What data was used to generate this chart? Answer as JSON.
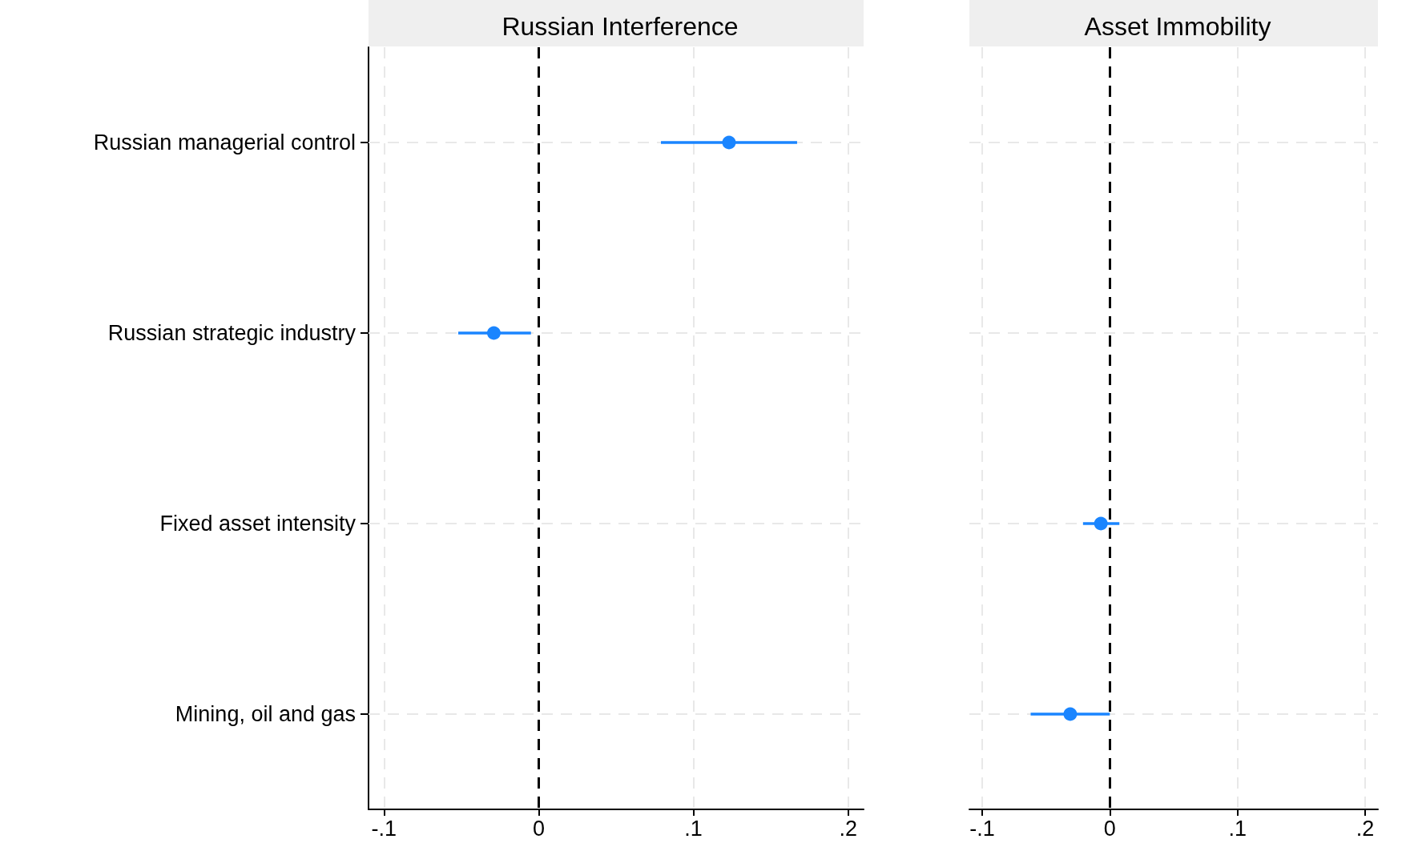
{
  "chart_data": [
    {
      "type": "scatter",
      "title": "Russian Interference",
      "orientation": "horizontal",
      "categories": [
        "Russian managerial control",
        "Russian strategic industry",
        "Fixed asset intensity",
        "Mining, oil and gas"
      ],
      "series": [
        {
          "color": "#1a85ff",
          "values": [
            0.123,
            -0.029,
            null,
            null
          ],
          "errors": [
            [
              0.079,
              0.167
            ],
            [
              -0.052,
              -0.005
            ],
            null,
            null
          ]
        }
      ],
      "xlim": [
        -0.11,
        0.21
      ],
      "xticks": [
        {
          "value": -0.1,
          "label": "-.1"
        },
        0,
        {
          "value": 0.1,
          "label": ".1"
        },
        {
          "value": 0.2,
          "label": ".2"
        }
      ],
      "ref_lines": [
        {
          "axis": "x",
          "value": 0,
          "color": "#000000",
          "line_style": "dashed"
        }
      ],
      "grid": true,
      "marker": "circle"
    },
    {
      "type": "scatter",
      "title": "Asset Immobility",
      "orientation": "horizontal",
      "categories": [
        null,
        null,
        null,
        null
      ],
      "series": [
        {
          "color": "#1a85ff",
          "values": [
            null,
            null,
            -0.007,
            -0.031
          ],
          "errors": [
            null,
            null,
            [
              -0.021,
              0.0075
            ],
            [
              -0.062,
              0
            ]
          ]
        }
      ],
      "xlim": [
        -0.11,
        0.21
      ],
      "xticks": [
        {
          "value": -0.1,
          "label": "-.1"
        },
        0,
        {
          "value": 0.1,
          "label": ".1"
        },
        {
          "value": 0.2,
          "label": ".2"
        }
      ],
      "ref_lines": [
        {
          "axis": "x",
          "value": 0,
          "color": "#000000",
          "line_style": "dashed"
        }
      ],
      "grid": true,
      "marker": "circle",
      "tick_labels": "x"
    }
  ]
}
